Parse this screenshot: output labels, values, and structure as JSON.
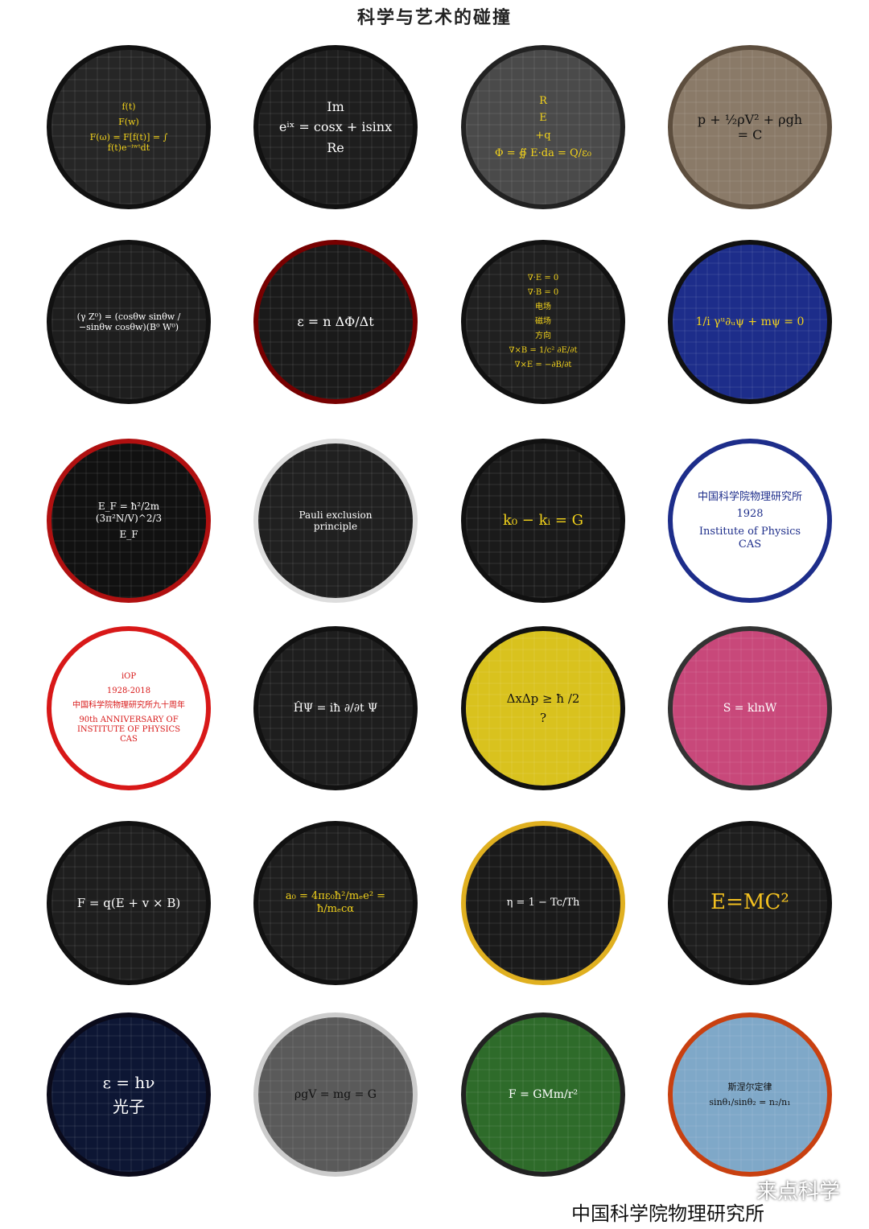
{
  "title": "科学与艺术的碰撞",
  "covers": [
    {
      "texts": [
        "f(t)",
        "F(w)",
        "F(ω) = F[f(t)] = ∫ f(t)e⁻ⁱʷᵗdt"
      ]
    },
    {
      "texts": [
        "Im",
        "eⁱˣ = cosx + isinx",
        "Re"
      ]
    },
    {
      "texts": [
        "R",
        "E",
        "+q",
        "Φ = ∯ E·da = Q/ε₀"
      ]
    },
    {
      "texts": [
        "p + ½ρV² + ρgh = C"
      ]
    },
    {
      "texts": [
        "(γ Z⁰) = (cosθw sinθw / −sinθw cosθw)(B⁰ W⁰)"
      ]
    },
    {
      "texts": [
        "ε = n ΔΦ/Δt"
      ]
    },
    {
      "texts": [
        "∇·E = 0",
        "∇·B = 0",
        "电场",
        "磁场",
        "方向",
        "∇×B = 1/c² ∂E/∂t",
        "∇×E = −∂B/∂t"
      ]
    },
    {
      "texts": [
        "1/i γᵘ∂ᵤψ + mψ = 0"
      ]
    },
    {
      "texts": [
        "E_F = ħ²/2m (3π²N/V)^2/3",
        "E_F"
      ]
    },
    {
      "texts": [
        "Pauli exclusion principle"
      ]
    },
    {
      "texts": [
        "k₀ − kᵢ = G"
      ]
    },
    {
      "texts": [
        "中国科学院物理研究所",
        "1928",
        "Institute of Physics CAS"
      ]
    },
    {
      "texts": [
        "iOP",
        "1928-2018",
        "中国科学院物理研究所九十周年",
        "90th ANNIVERSARY OF INSTITUTE OF PHYSICS CAS"
      ]
    },
    {
      "texts": [
        "ĤΨ = iħ ∂/∂t Ψ"
      ]
    },
    {
      "texts": [
        "ΔxΔp ≥ ħ /2",
        "?"
      ]
    },
    {
      "texts": [
        "S = klnW"
      ]
    },
    {
      "texts": [
        "F = q(E + v × B)"
      ]
    },
    {
      "texts": [
        "a₀ = 4πε₀ħ²/mₑe² = ħ/mₑcα"
      ]
    },
    {
      "texts": [
        "η = 1 − Tc/Th"
      ]
    },
    {
      "texts": [
        "E=MC²"
      ]
    },
    {
      "texts": [
        "ε = hν",
        "光子"
      ]
    },
    {
      "texts": [
        "ρgV = mg = G"
      ]
    },
    {
      "texts": [
        "F = GMm/r²"
      ]
    },
    {
      "texts": [
        "斯涅尔定律",
        "sinθ₁/sinθ₂ = n₂/n₁"
      ]
    }
  ],
  "watermark": "来点科学",
  "footer": "中国科学院物理研究所"
}
